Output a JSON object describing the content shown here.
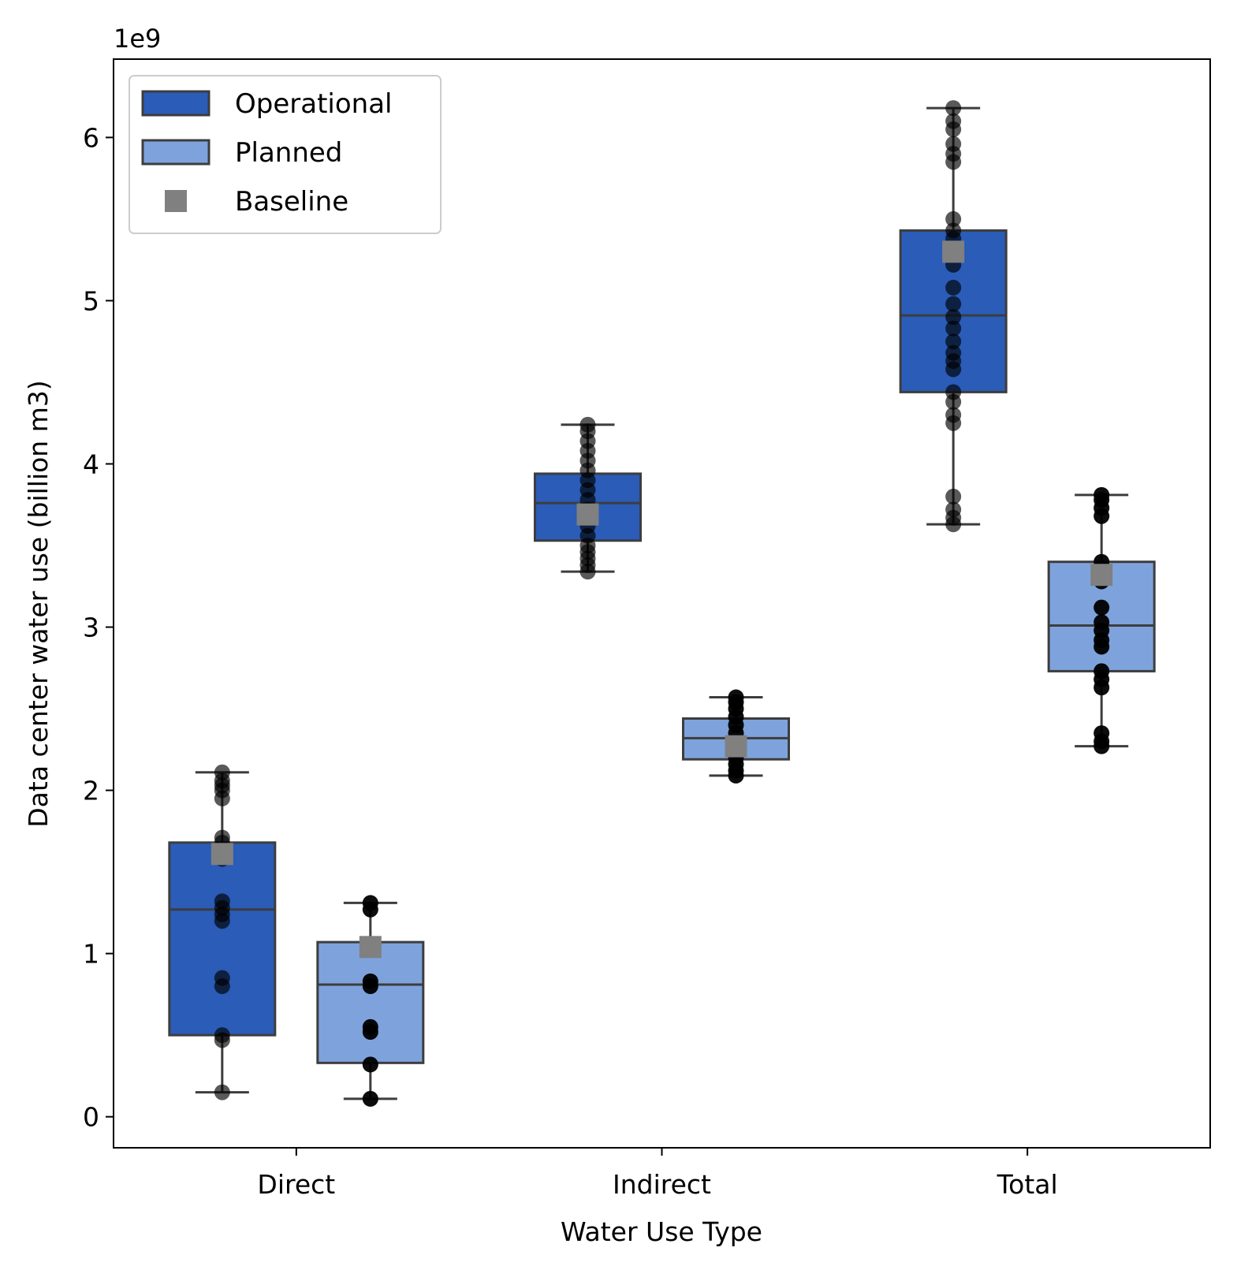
{
  "chart_data": {
    "type": "box",
    "title": "",
    "xlabel": "Water Use Type",
    "ylabel": "Data center water use (billion m3)",
    "y_offset_label": "1e9",
    "ylim": [
      -0.19,
      6.48
    ],
    "y_scale": 1000000000,
    "yticks": [
      0,
      1,
      2,
      3,
      4,
      5,
      6
    ],
    "ytick_labels": [
      "0",
      "1",
      "2",
      "3",
      "4",
      "5",
      "6"
    ],
    "categories": [
      "Direct",
      "Indirect",
      "Total"
    ],
    "grid": false,
    "legend_position": "upper left",
    "series": [
      {
        "name": "Operational",
        "color": "#2a5cb8",
        "boxes": [
          {
            "category": "Direct",
            "whisker_low": 0.15,
            "q1": 0.5,
            "median": 1.27,
            "q3": 1.68,
            "whisker_high": 2.11,
            "baseline": 1.61,
            "points": [
              0.15,
              0.47,
              0.5,
              0.8,
              0.85,
              1.2,
              1.24,
              1.28,
              1.32,
              1.58,
              1.62,
              1.68,
              1.71,
              1.95,
              2.0,
              2.03,
              2.06,
              2.11
            ]
          },
          {
            "category": "Indirect",
            "whisker_low": 3.34,
            "q1": 3.53,
            "median": 3.76,
            "q3": 3.94,
            "whisker_high": 4.24,
            "baseline": 3.69,
            "points": [
              3.34,
              3.38,
              3.42,
              3.46,
              3.5,
              3.56,
              3.62,
              3.68,
              3.72,
              3.78,
              3.84,
              3.9,
              3.96,
              4.02,
              4.08,
              4.14,
              4.2,
              4.24
            ]
          },
          {
            "category": "Total",
            "whisker_low": 3.63,
            "q1": 4.44,
            "median": 4.91,
            "q3": 5.43,
            "whisker_high": 6.18,
            "baseline": 5.3,
            "points": [
              3.63,
              3.67,
              3.72,
              3.8,
              4.25,
              4.3,
              4.38,
              4.44,
              4.58,
              4.63,
              4.68,
              4.75,
              4.83,
              4.9,
              4.98,
              5.08,
              5.22,
              5.3,
              5.38,
              5.43,
              5.5,
              5.85,
              5.9,
              5.96,
              6.05,
              6.1,
              6.18
            ]
          }
        ]
      },
      {
        "name": "Planned",
        "color": "#7ea3dc",
        "boxes": [
          {
            "category": "Direct",
            "whisker_low": 0.11,
            "q1": 0.33,
            "median": 0.81,
            "q3": 1.07,
            "whisker_high": 1.31,
            "baseline": 1.04,
            "points": [
              0.11,
              0.32,
              0.52,
              0.55,
              0.8,
              0.83,
              1.04,
              1.27,
              1.31
            ]
          },
          {
            "category": "Indirect",
            "whisker_low": 2.09,
            "q1": 2.19,
            "median": 2.32,
            "q3": 2.44,
            "whisker_high": 2.57,
            "baseline": 2.27,
            "points": [
              2.09,
              2.12,
              2.16,
              2.2,
              2.24,
              2.28,
              2.35,
              2.4,
              2.45,
              2.5,
              2.54,
              2.57
            ]
          },
          {
            "category": "Total",
            "whisker_low": 2.27,
            "q1": 2.73,
            "median": 3.01,
            "q3": 3.4,
            "whisker_high": 3.81,
            "baseline": 3.32,
            "points": [
              2.27,
              2.3,
              2.35,
              2.63,
              2.68,
              2.73,
              2.88,
              2.92,
              2.98,
              3.03,
              3.12,
              3.28,
              3.36,
              3.4,
              3.68,
              3.73,
              3.78,
              3.81
            ]
          }
        ]
      }
    ],
    "legend": [
      {
        "label": "Operational",
        "kind": "patch",
        "color": "#2a5cb8"
      },
      {
        "label": "Planned",
        "kind": "patch",
        "color": "#7ea3dc"
      },
      {
        "label": "Baseline",
        "kind": "marker",
        "color": "#808080"
      }
    ],
    "baseline_color": "#808080",
    "point_color": "#000000"
  }
}
